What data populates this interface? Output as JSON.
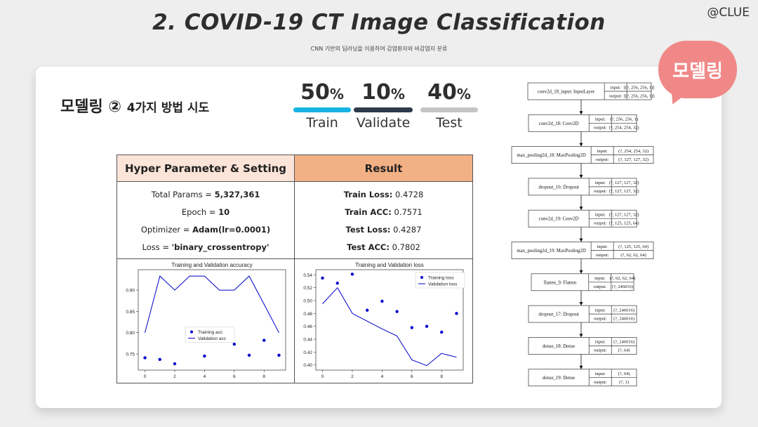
{
  "header": {
    "title": "2. COVID-19 CT Image Classification",
    "subtitle": "CNN 기반의 딥러닝을 이용하여 감염환자와 비감염자 분류",
    "brand": "@CLUE"
  },
  "badge": {
    "label": "모델링",
    "color": "#f08888"
  },
  "section": {
    "title": "모델링 ②",
    "subtitle": "4가지 방법 시도"
  },
  "split": [
    {
      "percent": "50",
      "unit": "%",
      "label": "Train",
      "color": "#17b4e3"
    },
    {
      "percent": "10",
      "unit": "%",
      "label": "Validate",
      "color": "#2d3a4a"
    },
    {
      "percent": "40",
      "unit": "%",
      "label": "Test",
      "color": "#c4c4c4"
    }
  ],
  "table": {
    "left_header": "Hyper Parameter & Setting",
    "right_header": "Result",
    "left_rows": [
      {
        "label": "Total Params = ",
        "value": "5,327,361"
      },
      {
        "label": "Epoch = ",
        "value": "10"
      },
      {
        "label": "Optimizer = ",
        "value": "Adam(lr=0.0001)"
      },
      {
        "label": "Loss = ",
        "value": "'binary_crossentropy'"
      }
    ],
    "right_rows": [
      {
        "label": "Train Loss:",
        "value": " 0.4728"
      },
      {
        "label": "Train ACC:",
        "value": " 0.7571"
      },
      {
        "label": "Test Loss:",
        "value": " 0.4287"
      },
      {
        "label": "Test ACC:",
        "value": " 0.7802"
      }
    ]
  },
  "chart_data": [
    {
      "type": "scatter",
      "title": "Training and Validation accuracy",
      "x": [
        0,
        1,
        2,
        3,
        4,
        5,
        6,
        7,
        8,
        9
      ],
      "xticks": [
        0,
        2,
        4,
        6,
        8
      ],
      "yticks": [
        0.75,
        0.8,
        0.85,
        0.9
      ],
      "ytick_labels": [
        "0.75",
        "0.80",
        "0.85",
        "0.90"
      ],
      "xlim": [
        -0.45,
        9.45
      ],
      "ylim": [
        0.712,
        0.948
      ],
      "legend": "center",
      "series": [
        {
          "name": "Training acc",
          "style": "dots",
          "color": "#0000cc",
          "values": [
            0.741,
            0.737,
            0.727,
            0.787,
            0.745,
            0.783,
            0.773,
            0.747,
            0.782,
            0.747
          ]
        },
        {
          "name": "Validation acc",
          "style": "line",
          "color": "#0000cc",
          "values": [
            0.8,
            0.933,
            0.9,
            0.933,
            0.933,
            0.9,
            0.9,
            0.933,
            0.867,
            0.8
          ]
        }
      ]
    },
    {
      "type": "scatter",
      "title": "Training and Validation loss",
      "x": [
        0,
        1,
        2,
        3,
        4,
        5,
        6,
        7,
        8,
        9
      ],
      "xticks": [
        0,
        2,
        4,
        6,
        8
      ],
      "yticks": [
        0.4,
        0.42,
        0.44,
        0.46,
        0.48,
        0.5,
        0.52,
        0.54
      ],
      "ytick_labels": [
        "0.40",
        "0.42",
        "0.44",
        "0.46",
        "0.48",
        "0.50",
        "0.52",
        "0.54"
      ],
      "xlim": [
        -0.45,
        9.45
      ],
      "ylim": [
        0.392,
        0.548
      ],
      "legend": "top-right",
      "series": [
        {
          "name": "Training loss",
          "style": "dots",
          "color": "#0000cc",
          "values": [
            0.535,
            0.527,
            0.541,
            0.485,
            0.499,
            0.483,
            0.458,
            0.46,
            0.451,
            0.48
          ]
        },
        {
          "name": "Validation loss",
          "style": "line",
          "color": "#0000cc",
          "values": [
            0.495,
            0.52,
            0.48,
            0.468,
            0.456,
            0.445,
            0.408,
            0.399,
            0.418,
            0.412
          ]
        }
      ]
    }
  ],
  "model_diagram": {
    "layers": [
      {
        "name": "conv2d_18_input: InputLayer",
        "input": "[(?, 256, 256, 1)]",
        "output": "[(?, 256, 256, 1)]"
      },
      {
        "name": "conv2d_18: Conv2D",
        "input": "(?, 256, 256, 1)",
        "output": "(?, 254, 254, 32)"
      },
      {
        "name": "max_pooling2d_18: MaxPooling2D",
        "input": "(?, 254, 254, 32)",
        "output": "(?, 127, 127, 32)"
      },
      {
        "name": "dropout_16: Dropout",
        "input": "(?, 127, 127, 32)",
        "output": "(?, 127, 127, 32)"
      },
      {
        "name": "conv2d_19: Conv2D",
        "input": "(?, 127, 127, 32)",
        "output": "(?, 125, 125, 64)"
      },
      {
        "name": "max_pooling2d_19: MaxPooling2D",
        "input": "(?, 125, 125, 64)",
        "output": "(?, 62, 62, 64)"
      },
      {
        "name": "flatten_9: Flatten",
        "input": "(?, 62, 62, 64)",
        "output": "(?, 246016)"
      },
      {
        "name": "dropout_17: Dropout",
        "input": "(?, 246016)",
        "output": "(?, 246016)"
      },
      {
        "name": "dense_18: Dense",
        "input": "(?, 246016)",
        "output": "(?, 64)"
      },
      {
        "name": "dense_19: Dense",
        "input": "(?, 64)",
        "output": "(?, 1)"
      }
    ],
    "input_label": "input:",
    "output_label": "output:"
  }
}
